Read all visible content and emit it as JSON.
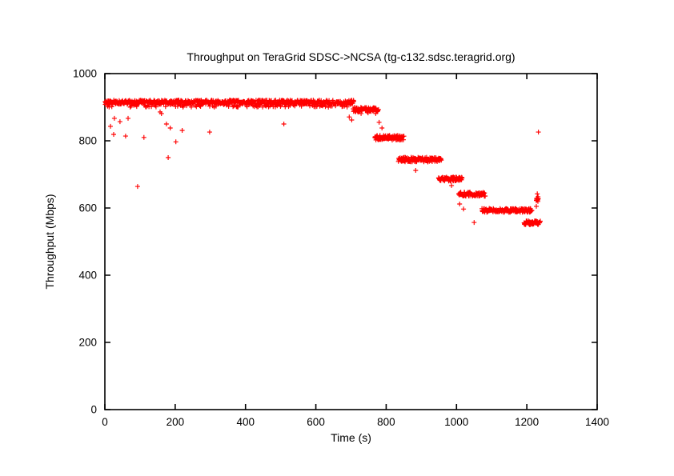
{
  "chart_data": {
    "type": "scatter",
    "title": "Throughput on TeraGrid SDSC->NCSA (tg-c132.sdsc.teragrid.org)",
    "xlabel": "Time (s)",
    "ylabel": "Throughput (Mbps)",
    "xlim": [
      0,
      1400
    ],
    "ylim": [
      0,
      1000
    ],
    "xticks": [
      0,
      200,
      400,
      600,
      800,
      1000,
      1200,
      1400
    ],
    "yticks": [
      0,
      200,
      400,
      600,
      800,
      1000
    ],
    "grid": false,
    "legend": "none",
    "marker": "plus",
    "marker_color": "#ff0000",
    "axis_color": "#000000",
    "background_color": "#ffffff",
    "series": [
      {
        "name": "throughput",
        "segments": [
          {
            "t0": 0,
            "t1": 708,
            "level": 915,
            "jitter": 6,
            "rate": 1,
            "dip_prob": 0.2,
            "dip": 9
          },
          {
            "t0": 706,
            "t1": 778,
            "level": 893,
            "jitter": 7,
            "rate": 1,
            "dip_prob": 0.1,
            "dip": 6
          },
          {
            "t0": 768,
            "t1": 850,
            "level": 809,
            "jitter": 7,
            "rate": 1,
            "dip_prob": 0,
            "dip": 0
          },
          {
            "t0": 835,
            "t1": 957,
            "level": 744,
            "jitter": 7,
            "rate": 1,
            "dip_prob": 0,
            "dip": 0
          },
          {
            "t0": 949,
            "t1": 1016,
            "level": 686,
            "jitter": 6,
            "rate": 1,
            "dip_prob": 0,
            "dip": 0
          },
          {
            "t0": 1006,
            "t1": 1082,
            "level": 641,
            "jitter": 6,
            "rate": 1,
            "dip_prob": 0,
            "dip": 0
          },
          {
            "t0": 1072,
            "t1": 1214,
            "level": 593,
            "jitter": 6,
            "rate": 1,
            "dip_prob": 0,
            "dip": 0
          },
          {
            "t0": 1192,
            "t1": 1238,
            "level": 556,
            "jitter": 6,
            "rate": 1,
            "dip_prob": 0,
            "dip": 0
          },
          {
            "t0": 1227,
            "t1": 1233,
            "level": 634,
            "jitter": 15,
            "rate": 2.5,
            "dip_prob": 0,
            "dip": 0
          }
        ],
        "outliers": [
          [
            16,
            843
          ],
          [
            25,
            819
          ],
          [
            27,
            867
          ],
          [
            43,
            857
          ],
          [
            59,
            814
          ],
          [
            66,
            867
          ],
          [
            93,
            664
          ],
          [
            111,
            810
          ],
          [
            157,
            886
          ],
          [
            161,
            881
          ],
          [
            175,
            850
          ],
          [
            180,
            750
          ],
          [
            186,
            838
          ],
          [
            202,
            797
          ],
          [
            220,
            831
          ],
          [
            298,
            826
          ],
          [
            509,
            850
          ],
          [
            695,
            871
          ],
          [
            702,
            862
          ],
          [
            780,
            855
          ],
          [
            788,
            838
          ],
          [
            884,
            712
          ],
          [
            986,
            667
          ],
          [
            1009,
            612
          ],
          [
            1020,
            597
          ],
          [
            1050,
            557
          ],
          [
            1227,
            605
          ],
          [
            1233,
            826
          ]
        ]
      }
    ]
  }
}
